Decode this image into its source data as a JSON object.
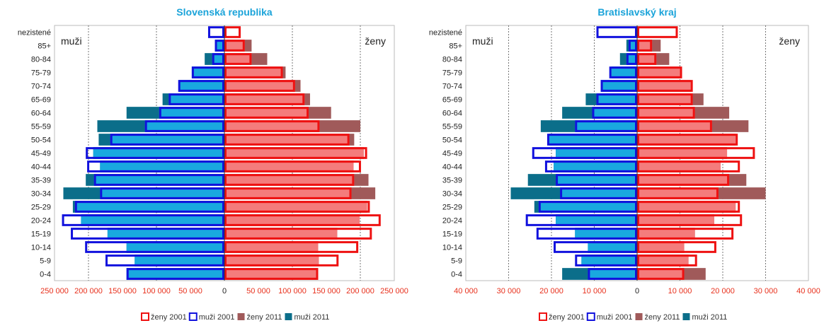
{
  "colors": {
    "title": "#1aa3d9",
    "tick_label": "#e8301c",
    "zeny_2001": "#ee1111",
    "muzi_2001": "#1111dd",
    "zeny_2011": "#a05a5a",
    "muzi_2011": "#0b6e8a",
    "female_fill": "#f47c7c",
    "male_fill": "#19a9df"
  },
  "chart_data": [
    {
      "type": "bar",
      "title": "Slovenská republika",
      "left_label": "muži",
      "right_label": "ženy",
      "categories": [
        "nezistené",
        "85+",
        "80-84",
        "75-79",
        "70-74",
        "65-69",
        "60-64",
        "55-59",
        "50-54",
        "45-49",
        "40-44",
        "35-39",
        "30-34",
        "25-29",
        "20-24",
        "15-19",
        "10-14",
        "5-9",
        "0-4"
      ],
      "xlim": [
        -250000,
        250000
      ],
      "tick_values": [
        -250000,
        -200000,
        -150000,
        -100000,
        -50000,
        0,
        50000,
        100000,
        150000,
        200000,
        250000
      ],
      "tick_labels": [
        "250 000",
        "200 000",
        "150 000",
        "100 000",
        "50 000",
        "0",
        "50 000",
        "100 000",
        "150 000",
        "200 000",
        "250 000"
      ],
      "grid_values": [
        -200000,
        -100000,
        100000,
        200000
      ],
      "legend": [
        "ženy 2001",
        "muži 2001",
        "ženy 2011",
        "muži 2011"
      ],
      "series": [
        {
          "name": "ženy 2001",
          "side": "right",
          "values": [
            24000,
            30000,
            40000,
            86000,
            104000,
            118000,
            124000,
            140000,
            184000,
            210000,
            201000,
            191000,
            187000,
            214000,
            230000,
            217000,
            197000,
            168000,
            138000
          ]
        },
        {
          "name": "muži 2001",
          "side": "left",
          "values": [
            24000,
            14000,
            18000,
            48000,
            68000,
            82000,
            96000,
            117000,
            168000,
            204000,
            202000,
            192000,
            183000,
            220000,
            239000,
            226000,
            205000,
            175000,
            144000
          ]
        },
        {
          "name": "ženy 2011",
          "side": "right",
          "values": [
            0,
            40000,
            63000,
            90000,
            112000,
            126000,
            157000,
            200000,
            191000,
            205000,
            190000,
            212000,
            222000,
            210000,
            199000,
            166000,
            138000,
            139000,
            138000
          ]
        },
        {
          "name": "muži 2011",
          "side": "left",
          "values": [
            0,
            14000,
            29000,
            48000,
            67000,
            91000,
            144000,
            187000,
            185000,
            193000,
            183000,
            204000,
            237000,
            223000,
            211000,
            172000,
            144000,
            132000,
            144000
          ]
        }
      ]
    },
    {
      "type": "bar",
      "title": "Bratislavský kraj",
      "left_label": "muži",
      "right_label": "ženy",
      "categories": [
        "nezistené",
        "85+",
        "80-84",
        "75-79",
        "70-74",
        "65-69",
        "60-64",
        "55-59",
        "50-54",
        "45-49",
        "40-44",
        "35-39",
        "30-34",
        "25-29",
        "20-24",
        "15-19",
        "10-14",
        "5-9",
        "0-4"
      ],
      "xlim": [
        -40000,
        40000
      ],
      "tick_values": [
        -40000,
        -30000,
        -20000,
        -10000,
        0,
        10000,
        20000,
        30000,
        40000
      ],
      "tick_labels": [
        "40 000",
        "30 000",
        "20 000",
        "10 000",
        "0",
        "10 000",
        "20 000",
        "30 000",
        "40 000"
      ],
      "grid_values": [
        -30000,
        -20000,
        -10000,
        10000,
        20000,
        30000
      ],
      "legend": [
        "ženy 2001",
        "muži 2001",
        "ženy 2011",
        "muži 2011"
      ],
      "series": [
        {
          "name": "ženy 2001",
          "side": "right",
          "values": [
            9500,
            3500,
            4500,
            10500,
            13000,
            13000,
            13500,
            17500,
            23500,
            27500,
            24000,
            21500,
            19000,
            24000,
            24500,
            22500,
            18500,
            14000,
            11000
          ]
        },
        {
          "name": "muži 2001",
          "side": "left",
          "values": [
            9500,
            2000,
            2500,
            6500,
            8500,
            9500,
            10500,
            14500,
            21000,
            24500,
            21500,
            19000,
            18000,
            23000,
            26000,
            23500,
            19500,
            14500,
            11500
          ]
        },
        {
          "name": "ženy 2011",
          "side": "right",
          "values": [
            0,
            5500,
            7500,
            10000,
            12500,
            15500,
            21500,
            26000,
            23000,
            21000,
            19500,
            25500,
            30000,
            23000,
            18000,
            13500,
            11000,
            12000,
            16000
          ]
        },
        {
          "name": "muži 2011",
          "side": "left",
          "values": [
            0,
            2500,
            4000,
            6000,
            8500,
            12000,
            17500,
            22500,
            20500,
            19000,
            19500,
            25500,
            29500,
            24000,
            19000,
            14500,
            11500,
            13000,
            17500
          ]
        }
      ]
    }
  ]
}
